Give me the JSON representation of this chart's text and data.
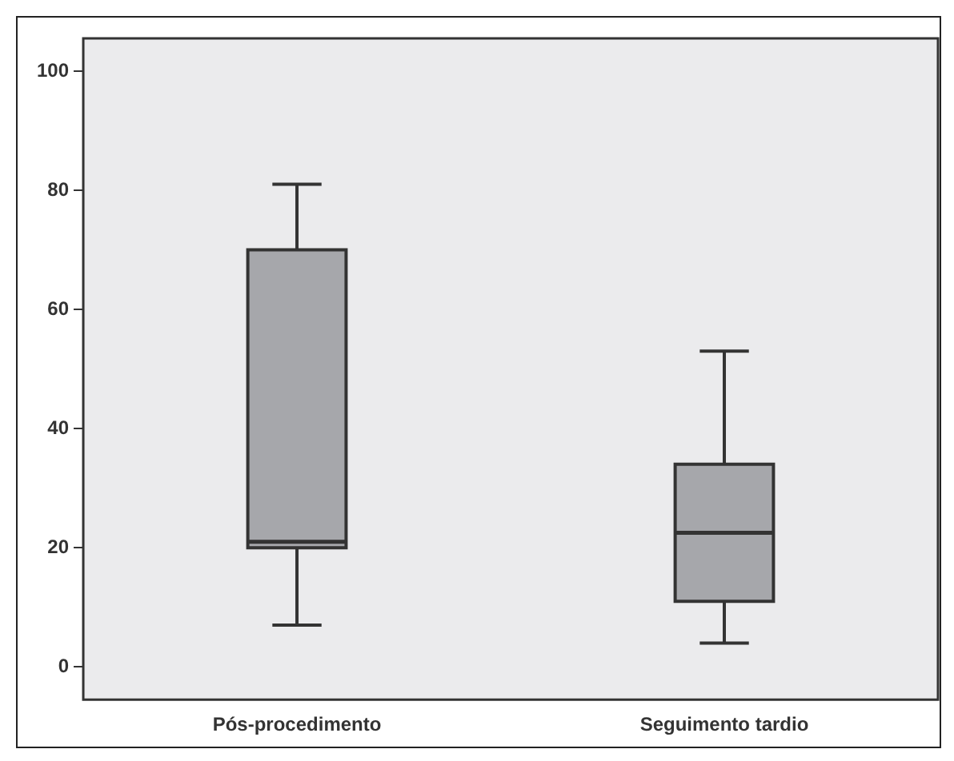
{
  "chart_data": {
    "type": "box",
    "categories": [
      "Pós-procedimento",
      "Seguimento tardio"
    ],
    "series": [
      {
        "color": "#a6a7ab",
        "boxes": [
          {
            "low": 7,
            "q1": 20,
            "median": 21,
            "q3": 70,
            "high": 81
          },
          {
            "low": 4,
            "q1": 11,
            "median": 22.5,
            "q3": 34,
            "high": 53
          }
        ]
      }
    ],
    "ylim": [
      -5.5,
      105.5
    ],
    "yticks": [
      0,
      20,
      40,
      60,
      80,
      100
    ],
    "grid": false
  }
}
